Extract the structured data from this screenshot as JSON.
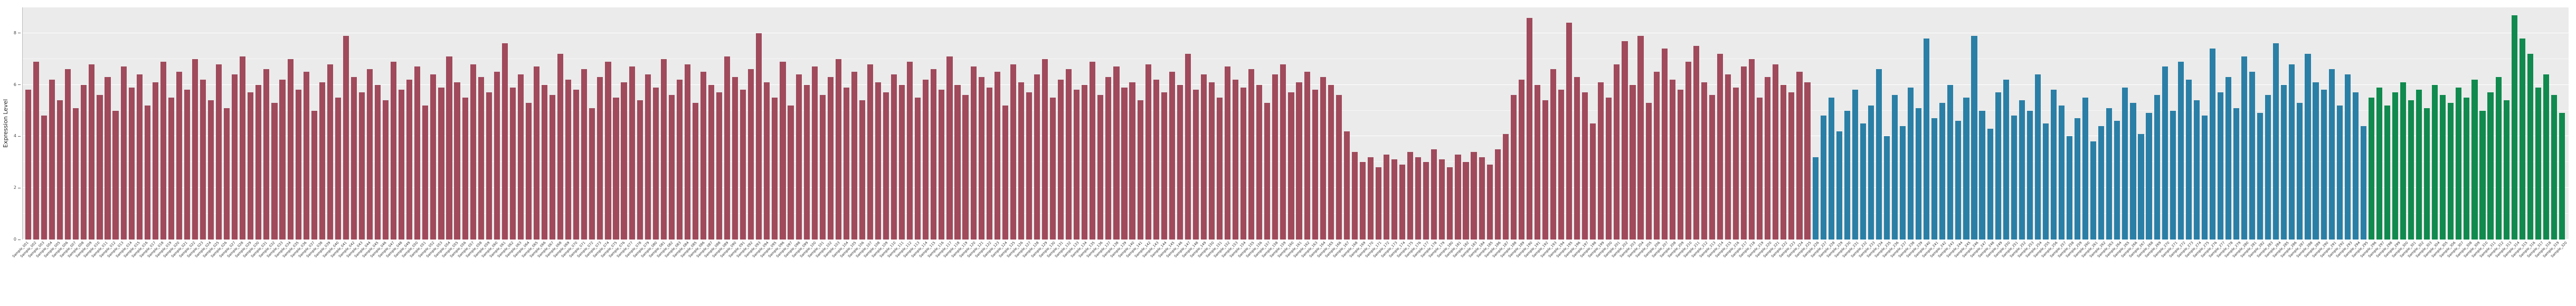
{
  "chart_data": {
    "type": "bar",
    "title": "",
    "xlabel": "",
    "ylabel": "Expression Level",
    "ylim": [
      0,
      9
    ],
    "yticks": [
      0,
      2,
      4,
      6,
      8
    ],
    "yticks_minor": [
      1,
      3,
      5,
      7
    ],
    "panel_background": "#ebebeb",
    "grid_color": "#ffffff",
    "legend": "none",
    "total_bars": 320,
    "bar_groups": [
      {
        "name": "group-1-red",
        "color": "#a04a5c",
        "labels": [
          "Sample_001",
          "Sample_002",
          "Sample_003",
          "Sample_004",
          "Sample_005",
          "Sample_006",
          "Sample_007",
          "Sample_008",
          "Sample_009",
          "Sample_010",
          "Sample_011",
          "Sample_012",
          "Sample_013",
          "Sample_014",
          "Sample_015",
          "Sample_016",
          "Sample_017",
          "Sample_018",
          "Sample_019",
          "Sample_020",
          "Sample_021",
          "Sample_022",
          "Sample_023",
          "Sample_024",
          "Sample_025",
          "Sample_026",
          "Sample_027",
          "Sample_028",
          "Sample_029",
          "Sample_030",
          "Sample_031",
          "Sample_032",
          "Sample_033",
          "Sample_034",
          "Sample_035",
          "Sample_036",
          "Sample_037",
          "Sample_038",
          "Sample_039",
          "Sample_040",
          "Sample_041",
          "Sample_042",
          "Sample_043",
          "Sample_044",
          "Sample_045",
          "Sample_046",
          "Sample_047",
          "Sample_048",
          "Sample_049",
          "Sample_050",
          "Sample_051",
          "Sample_052",
          "Sample_053",
          "Sample_054",
          "Sample_055",
          "Sample_056",
          "Sample_057",
          "Sample_058",
          "Sample_059",
          "Sample_060",
          "Sample_061",
          "Sample_062",
          "Sample_063",
          "Sample_064",
          "Sample_065",
          "Sample_066",
          "Sample_067",
          "Sample_068",
          "Sample_069",
          "Sample_070",
          "Sample_071",
          "Sample_072",
          "Sample_073",
          "Sample_074",
          "Sample_075",
          "Sample_076",
          "Sample_077",
          "Sample_078",
          "Sample_079",
          "Sample_080",
          "Sample_081",
          "Sample_082",
          "Sample_083",
          "Sample_084",
          "Sample_085",
          "Sample_086",
          "Sample_087",
          "Sample_088",
          "Sample_089",
          "Sample_090",
          "Sample_091",
          "Sample_092",
          "Sample_093",
          "Sample_094",
          "Sample_095",
          "Sample_096",
          "Sample_097",
          "Sample_098",
          "Sample_099",
          "Sample_100",
          "Sample_101",
          "Sample_102",
          "Sample_103",
          "Sample_104",
          "Sample_105",
          "Sample_106",
          "Sample_107",
          "Sample_108",
          "Sample_109",
          "Sample_110",
          "Sample_111",
          "Sample_112",
          "Sample_113",
          "Sample_114",
          "Sample_115",
          "Sample_116",
          "Sample_117",
          "Sample_118",
          "Sample_119",
          "Sample_120",
          "Sample_121",
          "Sample_122",
          "Sample_123",
          "Sample_124",
          "Sample_125",
          "Sample_126",
          "Sample_127",
          "Sample_128",
          "Sample_129",
          "Sample_130",
          "Sample_131",
          "Sample_132",
          "Sample_133",
          "Sample_134",
          "Sample_135",
          "Sample_136",
          "Sample_137",
          "Sample_138",
          "Sample_139",
          "Sample_140",
          "Sample_141",
          "Sample_142",
          "Sample_143",
          "Sample_144",
          "Sample_145",
          "Sample_146",
          "Sample_147",
          "Sample_148",
          "Sample_149",
          "Sample_150",
          "Sample_151",
          "Sample_152",
          "Sample_153",
          "Sample_154",
          "Sample_155",
          "Sample_156",
          "Sample_157",
          "Sample_158",
          "Sample_159",
          "Sample_160",
          "Sample_161",
          "Sample_162",
          "Sample_163",
          "Sample_164",
          "Sample_165",
          "Sample_166",
          "Sample_167",
          "Sample_168",
          "Sample_169",
          "Sample_170",
          "Sample_171",
          "Sample_172",
          "Sample_173",
          "Sample_174",
          "Sample_175",
          "Sample_176",
          "Sample_177",
          "Sample_178",
          "Sample_179",
          "Sample_180",
          "Sample_181",
          "Sample_182",
          "Sample_183",
          "Sample_184",
          "Sample_185",
          "Sample_186",
          "Sample_187",
          "Sample_188",
          "Sample_189",
          "Sample_190",
          "Sample_191",
          "Sample_192",
          "Sample_193",
          "Sample_194",
          "Sample_195",
          "Sample_196",
          "Sample_197",
          "Sample_198",
          "Sample_199",
          "Sample_200",
          "Sample_201",
          "Sample_202",
          "Sample_203",
          "Sample_204",
          "Sample_205",
          "Sample_206",
          "Sample_207",
          "Sample_208",
          "Sample_209",
          "Sample_210",
          "Sample_211",
          "Sample_212",
          "Sample_213",
          "Sample_214",
          "Sample_215",
          "Sample_216",
          "Sample_217",
          "Sample_218",
          "Sample_219",
          "Sample_220",
          "Sample_221",
          "Sample_222",
          "Sample_223",
          "Sample_224",
          "Sample_225"
        ],
        "values": [
          5.8,
          6.9,
          4.8,
          6.2,
          5.4,
          6.6,
          5.1,
          6.0,
          6.8,
          5.6,
          6.3,
          5.0,
          6.7,
          5.9,
          6.4,
          5.2,
          6.1,
          6.9,
          5.5,
          6.5,
          5.8,
          7.0,
          6.2,
          5.4,
          6.8,
          5.1,
          6.4,
          7.1,
          5.7,
          6.0,
          6.6,
          5.3,
          6.2,
          7.0,
          5.8,
          6.5,
          5.0,
          6.1,
          6.8,
          5.5,
          7.9,
          6.3,
          5.7,
          6.6,
          6.0,
          5.4,
          6.9,
          5.8,
          6.2,
          6.7,
          5.2,
          6.4,
          5.9,
          7.1,
          6.1,
          5.5,
          6.8,
          6.3,
          5.7,
          6.5,
          7.6,
          5.9,
          6.4,
          5.3,
          6.7,
          6.0,
          5.6,
          7.2,
          6.2,
          5.8,
          6.6,
          5.1,
          6.3,
          6.9,
          5.5,
          6.1,
          6.7,
          5.4,
          6.4,
          5.9,
          7.0,
          5.6,
          6.2,
          6.8,
          5.3,
          6.5,
          6.0,
          5.7,
          7.1,
          6.3,
          5.8,
          6.6,
          8.0,
          6.1,
          5.5,
          6.9,
          5.2,
          6.4,
          6.0,
          6.7,
          5.6,
          6.3,
          7.0,
          5.9,
          6.5,
          5.4,
          6.8,
          6.1,
          5.7,
          6.4,
          6.0,
          6.9,
          5.5,
          6.2,
          6.6,
          5.8,
          7.1,
          6.0,
          5.6,
          6.7,
          6.3,
          5.9,
          6.5,
          5.2,
          6.8,
          6.1,
          5.7,
          6.4,
          7.0,
          5.5,
          6.2,
          6.6,
          5.8,
          6.0,
          6.9,
          5.6,
          6.3,
          6.7,
          5.9,
          6.1,
          5.4,
          6.8,
          6.2,
          5.7,
          6.5,
          6.0,
          7.2,
          5.8,
          6.4,
          6.1,
          5.5,
          6.7,
          6.2,
          5.9,
          6.6,
          6.0,
          5.3,
          6.4,
          6.8,
          5.7,
          6.1,
          6.5,
          5.8,
          6.3,
          6.0,
          5.6,
          4.2,
          3.4,
          3.0,
          3.2,
          2.8,
          3.3,
          3.1,
          2.9,
          3.4,
          3.2,
          3.0,
          3.5,
          3.1,
          2.8,
          3.3,
          3.0,
          3.4,
          3.2,
          2.9,
          3.5,
          4.1,
          5.6,
          6.2,
          8.6,
          6.0,
          5.4,
          6.6,
          5.8,
          8.4,
          6.3,
          5.7,
          4.5,
          6.1,
          5.5,
          6.8,
          7.7,
          6.0,
          7.9,
          5.3,
          6.5,
          7.4,
          6.2,
          5.8,
          6.9,
          7.5,
          6.1,
          5.6,
          7.2,
          6.4,
          5.9,
          6.7,
          7.0,
          5.5,
          6.3,
          6.8,
          6.0,
          5.7,
          6.5,
          6.1
        ]
      },
      {
        "name": "group-2-blue",
        "color": "#2a7fa6",
        "labels": [
          "Sample_226",
          "Sample_227",
          "Sample_228",
          "Sample_229",
          "Sample_230",
          "Sample_231",
          "Sample_232",
          "Sample_233",
          "Sample_234",
          "Sample_235",
          "Sample_236",
          "Sample_237",
          "Sample_238",
          "Sample_239",
          "Sample_240",
          "Sample_241",
          "Sample_242",
          "Sample_243",
          "Sample_244",
          "Sample_245",
          "Sample_246",
          "Sample_247",
          "Sample_248",
          "Sample_249",
          "Sample_250",
          "Sample_251",
          "Sample_252",
          "Sample_253",
          "Sample_254",
          "Sample_255",
          "Sample_256",
          "Sample_257",
          "Sample_258",
          "Sample_259",
          "Sample_260",
          "Sample_261",
          "Sample_262",
          "Sample_263",
          "Sample_264",
          "Sample_265",
          "Sample_266",
          "Sample_267",
          "Sample_268",
          "Sample_269",
          "Sample_270",
          "Sample_271",
          "Sample_272",
          "Sample_273",
          "Sample_274",
          "Sample_275",
          "Sample_276",
          "Sample_277",
          "Sample_278",
          "Sample_279",
          "Sample_280",
          "Sample_281",
          "Sample_282",
          "Sample_283",
          "Sample_284",
          "Sample_285",
          "Sample_286",
          "Sample_287",
          "Sample_288",
          "Sample_289",
          "Sample_290",
          "Sample_291",
          "Sample_292",
          "Sample_293",
          "Sample_294",
          "Sample_295"
        ],
        "values": [
          3.2,
          4.8,
          5.5,
          4.2,
          5.0,
          5.8,
          4.5,
          5.2,
          6.6,
          4.0,
          5.6,
          4.4,
          5.9,
          5.1,
          7.8,
          4.7,
          5.3,
          6.0,
          4.6,
          5.5,
          7.9,
          5.0,
          4.3,
          5.7,
          6.2,
          4.8,
          5.4,
          5.0,
          6.4,
          4.5,
          5.8,
          5.2,
          4.0,
          4.7,
          5.5,
          3.8,
          4.4,
          5.1,
          4.6,
          5.9,
          5.3,
          4.1,
          4.9,
          5.6,
          6.7,
          5.0,
          6.9,
          6.2,
          5.4,
          4.8,
          7.4,
          5.7,
          6.3,
          5.1,
          7.1,
          6.5,
          4.9,
          5.6,
          7.6,
          6.0,
          6.8,
          5.3,
          7.2,
          6.1,
          5.8,
          6.6,
          5.2,
          6.4,
          5.7,
          4.4
        ]
      },
      {
        "name": "group-3-green",
        "color": "#108a4e",
        "labels": [
          "Sample_296",
          "Sample_297",
          "Sample_298",
          "Sample_299",
          "Sample_300",
          "Sample_301",
          "Sample_302",
          "Sample_303",
          "Sample_304",
          "Sample_305",
          "Sample_306",
          "Sample_307",
          "Sample_308",
          "Sample_309",
          "Sample_310",
          "Sample_311",
          "Sample_312",
          "Sample_313",
          "Sample_314",
          "Sample_315",
          "Sample_316",
          "Sample_317",
          "Sample_318",
          "Sample_319",
          "Sample_320"
        ],
        "values": [
          5.5,
          5.9,
          5.2,
          5.7,
          6.1,
          5.4,
          5.8,
          5.1,
          6.0,
          5.6,
          5.3,
          5.9,
          5.5,
          6.2,
          5.0,
          5.7,
          6.3,
          5.4,
          8.7,
          7.8,
          7.2,
          5.9,
          6.4,
          5.6,
          4.9
        ]
      }
    ]
  }
}
